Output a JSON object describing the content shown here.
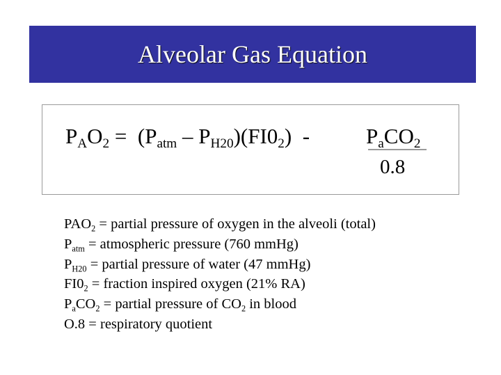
{
  "title": "Alveolar Gas Equation",
  "colors": {
    "banner": "#3232a0",
    "title_text": "#ffffff",
    "box_border": "#9a9a9a"
  },
  "equation": {
    "lhs": {
      "p": "P",
      "a": "A",
      "o": "O",
      "two": "2"
    },
    "equals": " =  (",
    "patm": {
      "p": "P",
      "sub": "atm"
    },
    "minus": " – ",
    "ph2o": {
      "p": "P",
      "sub": "H20"
    },
    "fio2": {
      "open": ")(FI0",
      "sub": "2",
      "close": ")"
    },
    "dash": "  - ",
    "numerator": {
      "p": "P",
      "a": "a",
      "co": "CO",
      "two": "2"
    },
    "denominator": "0.8"
  },
  "definitions": [
    {
      "base": "PAO",
      "sub": "2",
      "text": " = partial pressure of oxygen in the alveoli (total)"
    },
    {
      "base": "P",
      "sub": "atm",
      "text": " = atmospheric pressure (760 mmHg)"
    },
    {
      "base": "P",
      "sub": "H20",
      "text": " = partial pressure of water (47 mmHg)"
    },
    {
      "base": "FI0",
      "sub": "2",
      "text": " = fraction inspired oxygen (21% RA)"
    },
    {
      "base": "P",
      "sub": "a",
      "base2": "CO",
      "sub2": "2",
      "text": " = partial pressure of CO",
      "sub3": "2",
      "text2": " in blood"
    },
    {
      "text": "O.8 = respiratory quotient"
    }
  ]
}
